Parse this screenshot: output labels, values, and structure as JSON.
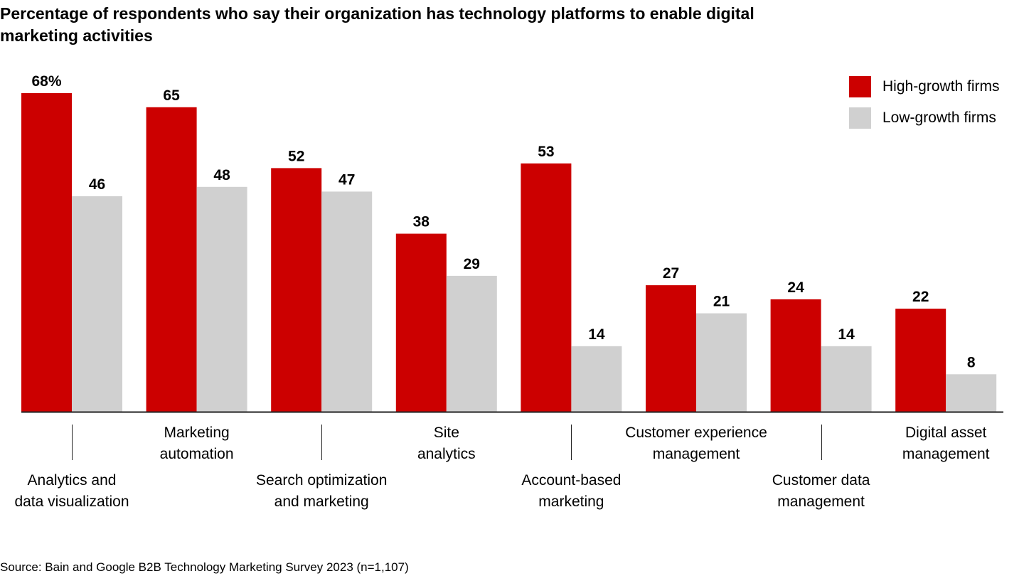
{
  "title": "Percentage of respondents who say their organization has technology platforms to enable digital marketing activities",
  "source": "Source: Bain and Google B2B Technology Marketing Survey 2023 (n=1,107)",
  "colors": {
    "high": "#cc0000",
    "low": "#d0d0d0",
    "axis": "#222222"
  },
  "chart_data": {
    "type": "bar",
    "title": "Percentage of respondents who say their organization has technology platforms to enable digital marketing activities",
    "xlabel": "",
    "ylabel": "",
    "ylim": [
      0,
      68
    ],
    "grid": false,
    "legend_position": "top-right",
    "categories": [
      "Analytics and data visualization",
      "Marketing automation",
      "Search optimization and marketing",
      "Site analytics",
      "Account-based marketing",
      "Customer experience management",
      "Customer data management",
      "Digital asset management"
    ],
    "category_lines": [
      [
        "Analytics and",
        "data visualization"
      ],
      [
        "Marketing",
        "automation"
      ],
      [
        "Search optimization",
        "and marketing"
      ],
      [
        "Site",
        "analytics"
      ],
      [
        "Account-based",
        "marketing"
      ],
      [
        "Customer experience",
        "management"
      ],
      [
        "Customer data",
        "management"
      ],
      [
        "Digital asset",
        "management"
      ]
    ],
    "series": [
      {
        "name": "High-growth firms",
        "values": [
          68,
          65,
          52,
          38,
          53,
          27,
          24,
          22
        ],
        "labels": [
          "68%",
          "65",
          "52",
          "38",
          "53",
          "27",
          "24",
          "22"
        ]
      },
      {
        "name": "Low-growth firms",
        "values": [
          46,
          48,
          47,
          29,
          14,
          21,
          14,
          8
        ],
        "labels": [
          "46",
          "48",
          "47",
          "29",
          "14",
          "21",
          "14",
          "8"
        ]
      }
    ]
  }
}
